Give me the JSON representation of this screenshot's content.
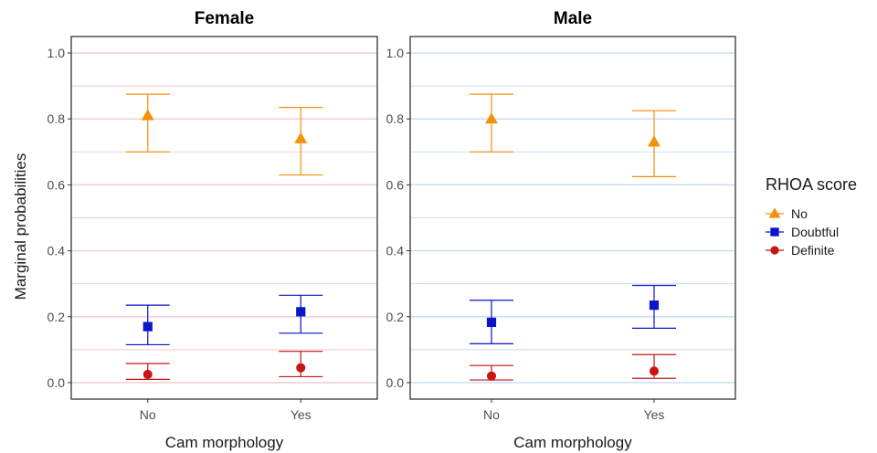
{
  "chart_data": {
    "type": "scatter",
    "ylabel": "Marginal probabilities",
    "xlabel": "Cam morphology",
    "categories": [
      "No",
      "Yes"
    ],
    "ylim": [
      -0.05,
      1.05
    ],
    "yticks": [
      0.0,
      0.2,
      0.4,
      0.6,
      0.8,
      1.0
    ],
    "ytick_labels": [
      "0.0",
      "0.2",
      "0.4",
      "0.6",
      "0.8",
      "1.0"
    ],
    "grid": true,
    "legend": {
      "title": "RHOA score",
      "position": "right",
      "items": [
        {
          "label": "No",
          "color": "#f5900a",
          "shape": "triangle"
        },
        {
          "label": "Doubtful",
          "color": "#0a14c8",
          "shape": "square"
        },
        {
          "label": "Definite",
          "color": "#c81414",
          "shape": "circle"
        }
      ]
    },
    "panels": [
      {
        "title": "Female",
        "grid_color": "#f2c9cc",
        "series": [
          {
            "name": "No",
            "color": "#f5900a",
            "shape": "triangle",
            "points": [
              {
                "x": "No",
                "y": 0.81,
                "lower": 0.7,
                "upper": 0.875
              },
              {
                "x": "Yes",
                "y": 0.74,
                "lower": 0.63,
                "upper": 0.835
              }
            ]
          },
          {
            "name": "Doubtful",
            "color": "#0a14c8",
            "shape": "square",
            "points": [
              {
                "x": "No",
                "y": 0.17,
                "lower": 0.115,
                "upper": 0.235
              },
              {
                "x": "Yes",
                "y": 0.215,
                "lower": 0.15,
                "upper": 0.265
              }
            ]
          },
          {
            "name": "Definite",
            "color": "#c81414",
            "shape": "circle",
            "points": [
              {
                "x": "No",
                "y": 0.025,
                "lower": 0.01,
                "upper": 0.058
              },
              {
                "x": "Yes",
                "y": 0.045,
                "lower": 0.018,
                "upper": 0.095
              }
            ]
          }
        ]
      },
      {
        "title": "Male",
        "grid_color": "#c6ddef",
        "series": [
          {
            "name": "No",
            "color": "#f5900a",
            "shape": "triangle",
            "points": [
              {
                "x": "No",
                "y": 0.8,
                "lower": 0.7,
                "upper": 0.875
              },
              {
                "x": "Yes",
                "y": 0.73,
                "lower": 0.625,
                "upper": 0.825
              }
            ]
          },
          {
            "name": "Doubtful",
            "color": "#0a14c8",
            "shape": "square",
            "points": [
              {
                "x": "No",
                "y": 0.183,
                "lower": 0.118,
                "upper": 0.25
              },
              {
                "x": "Yes",
                "y": 0.235,
                "lower": 0.165,
                "upper": 0.295
              }
            ]
          },
          {
            "name": "Definite",
            "color": "#c81414",
            "shape": "circle",
            "points": [
              {
                "x": "No",
                "y": 0.02,
                "lower": 0.008,
                "upper": 0.052
              },
              {
                "x": "Yes",
                "y": 0.035,
                "lower": 0.013,
                "upper": 0.085
              }
            ]
          }
        ]
      }
    ]
  }
}
